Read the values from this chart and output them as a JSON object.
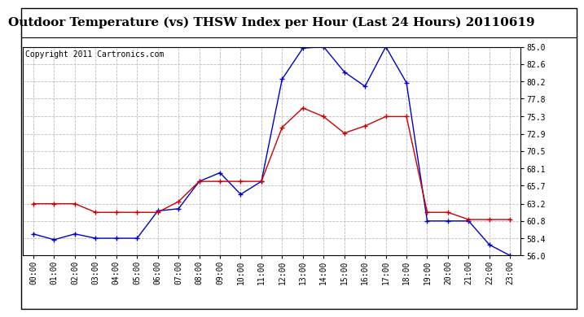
{
  "title": "Outdoor Temperature (vs) THSW Index per Hour (Last 24 Hours) 20110619",
  "copyright": "Copyright 2011 Cartronics.com",
  "hours": [
    "00:00",
    "01:00",
    "02:00",
    "03:00",
    "04:00",
    "05:00",
    "06:00",
    "07:00",
    "08:00",
    "09:00",
    "10:00",
    "11:00",
    "12:00",
    "13:00",
    "14:00",
    "15:00",
    "16:00",
    "17:00",
    "18:00",
    "19:00",
    "20:00",
    "21:00",
    "22:00",
    "23:00"
  ],
  "temp_blue": [
    59.0,
    58.2,
    59.0,
    58.4,
    58.4,
    58.4,
    62.2,
    62.5,
    66.3,
    67.5,
    64.5,
    66.3,
    80.5,
    84.8,
    85.0,
    81.5,
    79.5,
    85.0,
    80.0,
    60.8,
    60.8,
    60.8,
    57.5,
    56.0
  ],
  "temp_red": [
    63.2,
    63.2,
    63.2,
    62.0,
    62.0,
    62.0,
    62.0,
    63.5,
    66.3,
    66.3,
    66.3,
    66.3,
    73.8,
    76.5,
    75.3,
    73.0,
    74.0,
    75.3,
    75.3,
    62.0,
    62.0,
    61.0,
    61.0,
    61.0
  ],
  "ylim": [
    56.0,
    85.0
  ],
  "yticks": [
    56.0,
    58.4,
    60.8,
    63.2,
    65.7,
    68.1,
    70.5,
    72.9,
    75.3,
    77.8,
    80.2,
    82.6,
    85.0
  ],
  "blue_color": "#0000cc",
  "red_color": "#cc0000",
  "bg_color": "#ffffff",
  "grid_color": "#bbbbbb",
  "title_fontsize": 11,
  "copyright_fontsize": 7,
  "tick_fontsize": 7
}
